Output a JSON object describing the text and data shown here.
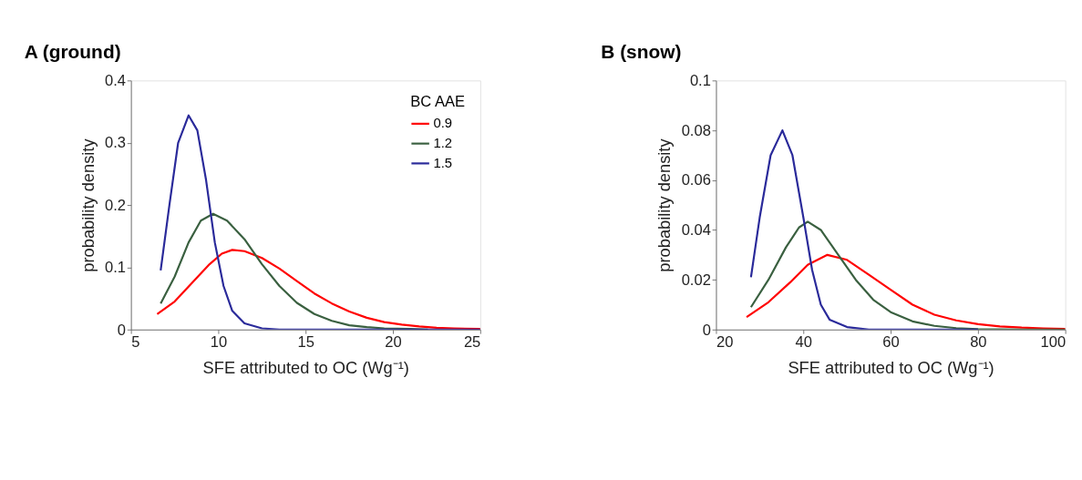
{
  "chart_data": [
    {
      "type": "line",
      "title": "A (ground)",
      "xlabel": "SFE attributed to OC (Wg⁻¹)",
      "ylabel": "probability density",
      "legend_title": "BC AAE",
      "legend": "top right",
      "grid": false,
      "xlim": [
        5,
        25
      ],
      "xticks": [
        5,
        10,
        15,
        20,
        25
      ],
      "ylim": [
        0,
        0.4
      ],
      "yticks": [
        0,
        0.1,
        0.2,
        0.3,
        0.4
      ],
      "series": [
        {
          "name": "0.9",
          "color": "#ff0000",
          "x": [
            6.5,
            7.5,
            8.5,
            9.5,
            10.2,
            10.8,
            11.5,
            12.5,
            13.5,
            14.5,
            15.5,
            16.5,
            17.5,
            18.5,
            19.5,
            20.5,
            21.5,
            22.5,
            23.5,
            25
          ],
          "values": [
            0.025,
            0.045,
            0.075,
            0.105,
            0.122,
            0.128,
            0.126,
            0.115,
            0.098,
            0.078,
            0.058,
            0.042,
            0.029,
            0.019,
            0.012,
            0.008,
            0.005,
            0.003,
            0.002,
            0.001
          ]
        },
        {
          "name": "1.2",
          "color": "#3a6040",
          "x": [
            6.7,
            7.5,
            8.3,
            9,
            9.7,
            10.5,
            11.5,
            12.5,
            13.5,
            14.5,
            15.5,
            16.5,
            17.5,
            18.5,
            19.5,
            21,
            22
          ],
          "values": [
            0.042,
            0.085,
            0.14,
            0.175,
            0.186,
            0.175,
            0.145,
            0.105,
            0.07,
            0.043,
            0.025,
            0.014,
            0.007,
            0.004,
            0.002,
            0.001,
            0
          ]
        },
        {
          "name": "1.5",
          "color": "#2a2a9a",
          "x": [
            6.7,
            7.2,
            7.7,
            8.3,
            8.8,
            9.3,
            9.8,
            10.3,
            10.8,
            11.5,
            12.5,
            13.5,
            25
          ],
          "values": [
            0.095,
            0.2,
            0.3,
            0.344,
            0.32,
            0.24,
            0.14,
            0.07,
            0.03,
            0.01,
            0.002,
            0,
            0
          ]
        }
      ]
    },
    {
      "type": "line",
      "title": "B (snow)",
      "xlabel": "SFE attributed to OC (Wg⁻¹)",
      "ylabel": "probability density",
      "legend": false,
      "grid": false,
      "xlim": [
        20,
        100
      ],
      "xticks": [
        20,
        40,
        60,
        80,
        100
      ],
      "ylim": [
        0,
        0.1
      ],
      "yticks": [
        0,
        0.02,
        0.04,
        0.06,
        0.08,
        0.1
      ],
      "series": [
        {
          "color": "#ff0000",
          "x": [
            27,
            32,
            37,
            41,
            45.5,
            50,
            55,
            60,
            65,
            70,
            75,
            80,
            85,
            90,
            95,
            100
          ],
          "values": [
            0.005,
            0.011,
            0.019,
            0.026,
            0.03,
            0.028,
            0.022,
            0.016,
            0.01,
            0.006,
            0.0037,
            0.0022,
            0.0013,
            0.0008,
            0.0005,
            0.0003
          ]
        },
        {
          "color": "#3a6040",
          "x": [
            28,
            32,
            36,
            39,
            41,
            44,
            48,
            52,
            56,
            60,
            65,
            70,
            75,
            80,
            90,
            100
          ],
          "values": [
            0.009,
            0.02,
            0.033,
            0.041,
            0.0433,
            0.04,
            0.03,
            0.02,
            0.012,
            0.007,
            0.0033,
            0.0015,
            0.0006,
            0.0002,
            0,
            0
          ]
        },
        {
          "color": "#2a2a9a",
          "x": [
            28,
            30,
            32.5,
            35.2,
            37.5,
            40,
            42,
            44,
            46,
            50,
            55,
            80
          ],
          "values": [
            0.021,
            0.045,
            0.07,
            0.08,
            0.07,
            0.045,
            0.024,
            0.01,
            0.004,
            0.001,
            0,
            0
          ]
        }
      ]
    }
  ]
}
